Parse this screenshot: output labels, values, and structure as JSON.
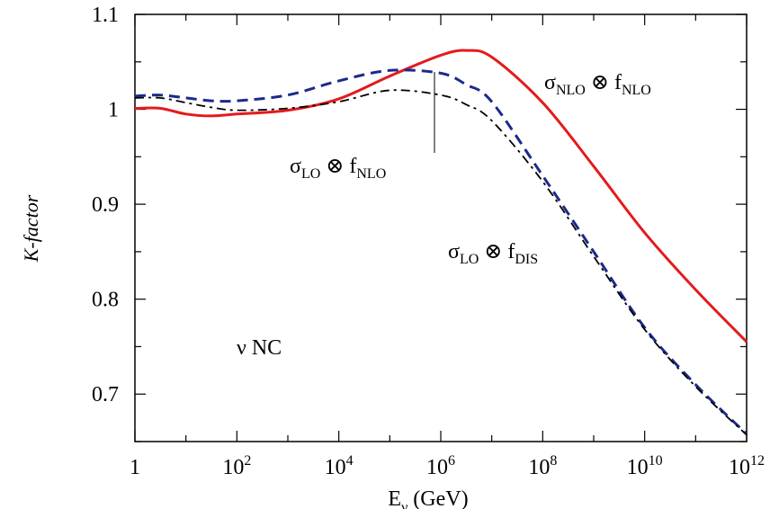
{
  "chart_data": {
    "type": "line",
    "ylabel": "K-factor",
    "xlabel": {
      "main": "E",
      "sub": "ν",
      "rest": " (GeV)"
    },
    "xscale": "log10",
    "xlim": [
      1,
      1000000000000.0
    ],
    "ylim": [
      0.65,
      1.1
    ],
    "xticks": [
      {
        "value": 1,
        "base": "1",
        "exp": ""
      },
      {
        "value": 100,
        "base": "10",
        "exp": "2"
      },
      {
        "value": 10000,
        "base": "10",
        "exp": "4"
      },
      {
        "value": 1000000,
        "base": "10",
        "exp": "6"
      },
      {
        "value": 100000000,
        "base": "10",
        "exp": "8"
      },
      {
        "value": 10000000000,
        "base": "10",
        "exp": "10"
      },
      {
        "value": 1000000000000,
        "base": "10",
        "exp": "12"
      }
    ],
    "yticks": [
      {
        "value": 0.7,
        "label": "0.7"
      },
      {
        "value": 0.8,
        "label": "0.8"
      },
      {
        "value": 0.9,
        "label": "0.9"
      },
      {
        "value": 1.0,
        "label": "1"
      },
      {
        "value": 1.1,
        "label": "1.1"
      }
    ],
    "grid": false,
    "series": [
      {
        "name": "σNLO ⊗ fNLO",
        "color": "#e41a1c",
        "style": "solid",
        "x": [
          1,
          3.16,
          10,
          31.6,
          100,
          1000,
          10000,
          100000,
          1000000,
          3160000,
          10000000,
          100000000,
          1000000000,
          10000000000,
          100000000000,
          1000000000000
        ],
        "y": [
          1.001,
          1.001,
          0.995,
          0.993,
          0.995,
          0.999,
          1.011,
          1.035,
          1.057,
          1.062,
          1.055,
          1.007,
          0.94,
          0.87,
          0.81,
          0.755
        ]
      },
      {
        "name": "σLO ⊗ fNLO",
        "color": "#1c2a8c",
        "style": "dashed",
        "x": [
          1,
          3.16,
          10,
          31.6,
          100,
          1000,
          10000,
          100000,
          1000000,
          3160000,
          10000000,
          100000000,
          1000000000,
          10000000000,
          100000000000,
          1000000000000
        ],
        "y": [
          1.014,
          1.015,
          1.012,
          1.009,
          1.009,
          1.015,
          1.03,
          1.041,
          1.038,
          1.026,
          1.008,
          0.93,
          0.85,
          0.77,
          0.71,
          0.658
        ]
      },
      {
        "name": "σLO ⊗ fDIS",
        "color": "#000000",
        "style": "dashdot",
        "x": [
          1,
          3.16,
          10,
          31.6,
          100,
          1000,
          10000,
          100000,
          1000000,
          3160000,
          10000000,
          100000000,
          1000000000,
          10000000000,
          100000000000,
          1000000000000
        ],
        "y": [
          1.012,
          1.012,
          1.007,
          1.002,
          0.999,
          1.001,
          1.008,
          1.02,
          1.015,
          1.005,
          0.988,
          0.924,
          0.845,
          0.768,
          0.708,
          0.657
        ]
      }
    ],
    "annotations": [
      {
        "id": "nlo-nlo",
        "main": "σ",
        "sub1": "NLO",
        "mid": " ⊗ f",
        "sub2": "NLO",
        "color": "#000000"
      },
      {
        "id": "lo-nlo",
        "main": "σ",
        "sub1": "LO",
        "mid": " ⊗ f",
        "sub2": "NLO",
        "color": "#000000"
      },
      {
        "id": "lo-dis",
        "main": "σ",
        "sub1": "LO",
        "mid": " ⊗ f",
        "sub2": "DIS",
        "color": "#000000"
      },
      {
        "id": "nu-nc",
        "text": "ν NC"
      }
    ]
  }
}
